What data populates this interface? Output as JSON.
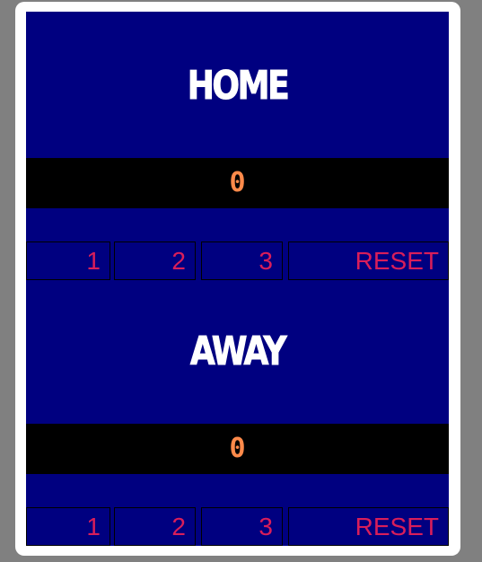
{
  "home": {
    "name": "HOME",
    "score": "0",
    "buttons": {
      "one": "1",
      "two": "2",
      "three": "3",
      "reset": "RESET"
    }
  },
  "away": {
    "name": "AWAY",
    "score": "0",
    "buttons": {
      "one": "1",
      "two": "2",
      "three": "3",
      "reset": "RESET"
    }
  },
  "colors": {
    "page_bg": "#808080",
    "card_bg": "#ffffff",
    "board_bg": "#000080",
    "score_strip": "#000000",
    "score_text": "#ff8a4a",
    "button_text": "#d91e5a",
    "team_text": "#ffffff"
  }
}
